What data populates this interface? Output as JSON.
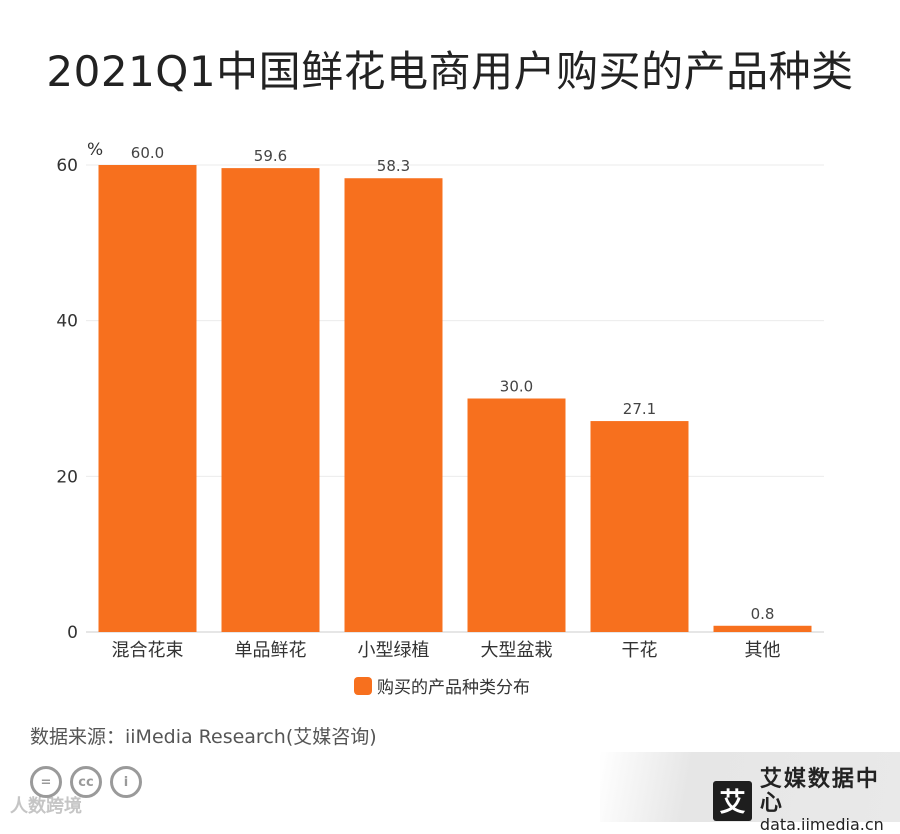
{
  "title": "2021Q1中国鲜花电商用户购买的产品种类",
  "source": "数据来源：iiMedia Research(艾媒咨询)",
  "watermark": "人数跨境",
  "cc_icons": [
    "=",
    "cc",
    "i"
  ],
  "brand": {
    "logo_char": "艾",
    "name": "艾媒数据中心",
    "url": "data.iimedia.cn"
  },
  "colors": {
    "bar": "#f7701e",
    "grid": "#ebebeb",
    "axis": "#cccccc",
    "text": "#333333"
  },
  "chart_data": {
    "type": "bar",
    "categories": [
      "混合花束",
      "单品鲜花",
      "小型绿植",
      "大型盆栽",
      "干花",
      "其他"
    ],
    "series": [
      {
        "name": "购买的产品种类分布",
        "values": [
          60.0,
          59.6,
          58.3,
          30.0,
          27.1,
          0.8
        ]
      }
    ],
    "data_labels": [
      "60.0",
      "59.6",
      "58.3",
      "30.0",
      "27.1",
      "0.8"
    ],
    "ylim": [
      0,
      60
    ],
    "yticks": [
      0,
      20,
      40,
      60
    ],
    "ylabel": "%",
    "xlabel": "",
    "grid": true,
    "legend": "bottom"
  }
}
